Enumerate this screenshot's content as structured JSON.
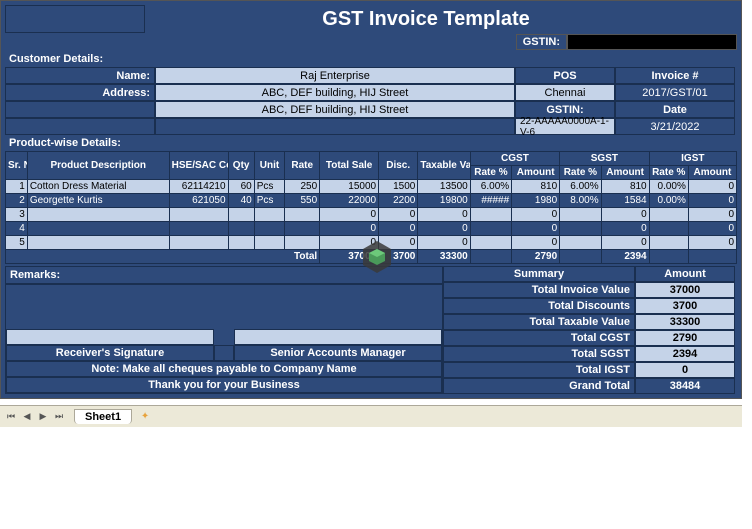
{
  "title": "GST Invoice Template",
  "gstin_label": "GSTIN:",
  "customer_header": "Customer Details:",
  "labels": {
    "name": "Name:",
    "address": "Address:",
    "pos": "POS",
    "invoice_no": "Invoice #",
    "gstin": "GSTIN:",
    "date": "Date"
  },
  "customer": {
    "name": "Raj Enterprise",
    "address1": "ABC, DEF building, HIJ Street",
    "address2": "ABC, DEF building, HIJ Street",
    "pos": "Chennai",
    "invoice_no": "2017/GST/01",
    "gstin": "22-AAAAA0000A-1-V-6",
    "date": "3/21/2022"
  },
  "product_header": "Product-wise Details:",
  "cols": {
    "sr": "Sr. No",
    "desc": "Product Description",
    "hse": "HSE/SAC Code",
    "qty": "Qty",
    "unit": "Unit",
    "rate": "Rate",
    "total_sale": "Total Sale",
    "disc": "Disc.",
    "taxable": "Taxable Value",
    "cgst": "CGST",
    "sgst": "SGST",
    "igst": "IGST",
    "rate_pct": "Rate %",
    "amount": "Amount"
  },
  "rows": [
    {
      "sr": "1",
      "desc": "Cotton Dress Material",
      "hse": "62114210",
      "qty": "60",
      "unit": "Pcs",
      "rate": "250",
      "total_sale": "15000",
      "disc": "1500",
      "taxable": "13500",
      "cgst_r": "6.00%",
      "cgst_a": "810",
      "sgst_r": "6.00%",
      "sgst_a": "810",
      "igst_r": "0.00%",
      "igst_a": "0"
    },
    {
      "sr": "2",
      "desc": "Georgette Kurtis",
      "hse": "621050",
      "qty": "40",
      "unit": "Pcs",
      "rate": "550",
      "total_sale": "22000",
      "disc": "2200",
      "taxable": "19800",
      "cgst_r": "#####",
      "cgst_a": "1980",
      "sgst_r": "8.00%",
      "sgst_a": "1584",
      "igst_r": "0.00%",
      "igst_a": "0"
    },
    {
      "sr": "3",
      "desc": "",
      "hse": "",
      "qty": "",
      "unit": "",
      "rate": "",
      "total_sale": "0",
      "disc": "0",
      "taxable": "0",
      "cgst_r": "",
      "cgst_a": "0",
      "sgst_r": "",
      "sgst_a": "0",
      "igst_r": "",
      "igst_a": "0"
    },
    {
      "sr": "4",
      "desc": "",
      "hse": "",
      "qty": "",
      "unit": "",
      "rate": "",
      "total_sale": "0",
      "disc": "0",
      "taxable": "0",
      "cgst_r": "",
      "cgst_a": "0",
      "sgst_r": "",
      "sgst_a": "0",
      "igst_r": "",
      "igst_a": "0"
    },
    {
      "sr": "5",
      "desc": "",
      "hse": "",
      "qty": "",
      "unit": "",
      "rate": "",
      "total_sale": "0",
      "disc": "0",
      "taxable": "0",
      "cgst_r": "",
      "cgst_a": "0",
      "sgst_r": "",
      "sgst_a": "0",
      "igst_r": "",
      "igst_a": "0"
    }
  ],
  "totals": {
    "label": "Total",
    "total_sale": "37000",
    "disc": "3700",
    "taxable": "33300",
    "cgst_a": "2790",
    "sgst_a": "2394",
    "igst_a": ""
  },
  "remarks_label": "Remarks:",
  "sig_receiver": "Receiver's Signature",
  "sig_manager": "Senior Accounts Manager",
  "note": "Note: Make all cheques payable to Company Name",
  "thankyou": "Thank you for your Business",
  "summary": {
    "header": "Summary",
    "amount_header": "Amount",
    "lines": [
      {
        "label": "Total Invoice Value",
        "amount": "37000"
      },
      {
        "label": "Total Discounts",
        "amount": "3700"
      },
      {
        "label": "Total Taxable Value",
        "amount": "33300"
      },
      {
        "label": "Total CGST",
        "amount": "2790"
      },
      {
        "label": "Total SGST",
        "amount": "2394"
      },
      {
        "label": "Total IGST",
        "amount": "0"
      }
    ],
    "grand_label": "Grand Total",
    "grand_amount": "38484"
  },
  "tab_name": "Sheet1",
  "colors": {
    "dark": "#2e4a7a",
    "light": "#c5d3e8",
    "border": "#1a2f50"
  }
}
